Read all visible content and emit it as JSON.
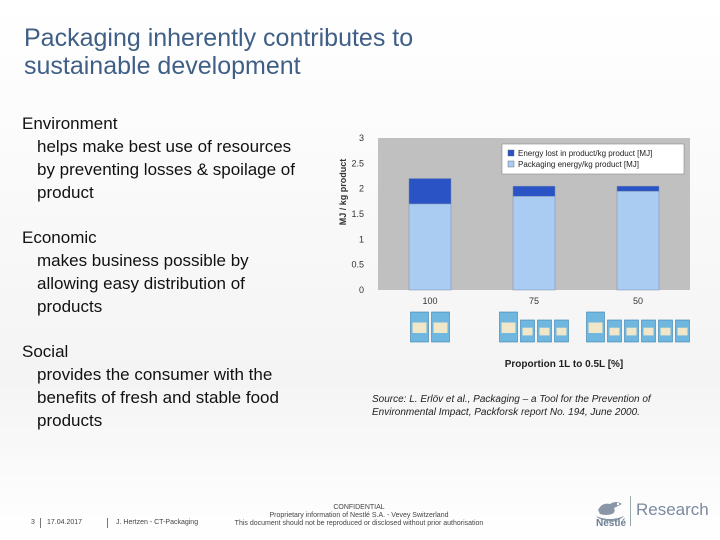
{
  "slide": {
    "title_lines": [
      "Packaging inherently contributes to",
      "sustainable development"
    ],
    "sections": [
      {
        "heading": "Environment",
        "body_lines": [
          "helps make best use of resources",
          "by preventing losses & spoilage of",
          "product"
        ]
      },
      {
        "heading": "Economic",
        "body_lines": [
          "makes business possible by",
          "allowing easy distribution of",
          "products"
        ]
      },
      {
        "heading": "Social",
        "body_lines": [
          "provides the consumer with the",
          "benefits of fresh and stable food",
          "products"
        ]
      }
    ],
    "source": "Source: L. Erlöv et al., Packaging – a Tool for the Prevention of Environmental Impact, Packforsk report No. 194, June 2000."
  },
  "chart_data": {
    "type": "bar",
    "stacked": true,
    "categories": [
      "100",
      "75",
      "50"
    ],
    "series": [
      {
        "name": "Packaging energy/kg product [MJ]",
        "values": [
          1.7,
          1.85,
          1.95
        ],
        "color": "#aaccf2"
      },
      {
        "name": "Energy lost in product/kg product [MJ]",
        "values": [
          0.5,
          0.2,
          0.1
        ],
        "color": "#2a53c6"
      }
    ],
    "legend_order": [
      "Energy lost in product/kg product [MJ]",
      "Packaging energy/kg product [MJ]"
    ],
    "xlabel": "Proportion 1L to 0.5L [%]",
    "ylabel": "MJ / kg product",
    "ylim": [
      0,
      3
    ],
    "yticks": [
      "0",
      "0.5",
      "1",
      "1.5",
      "2",
      "2.5",
      "3"
    ],
    "plot_background": "#c0c0c0",
    "legend_position": "top-right",
    "grid": false,
    "package_counts": [
      2,
      4,
      6
    ]
  },
  "footer": {
    "page": "3",
    "date": "17.04.2017",
    "author": "J. Hertzen - CT-Packaging",
    "confidential": "CONFIDENTIAL",
    "proprietary": "Proprietary information of Nestlé S.A. - Vevey Switzerland",
    "notice": "This document should not be reproduced or disclosed without prior authorisation",
    "logo_name": "Nestlé",
    "logo_text": "Research",
    "logo_icon": "nest-bird-icon"
  }
}
